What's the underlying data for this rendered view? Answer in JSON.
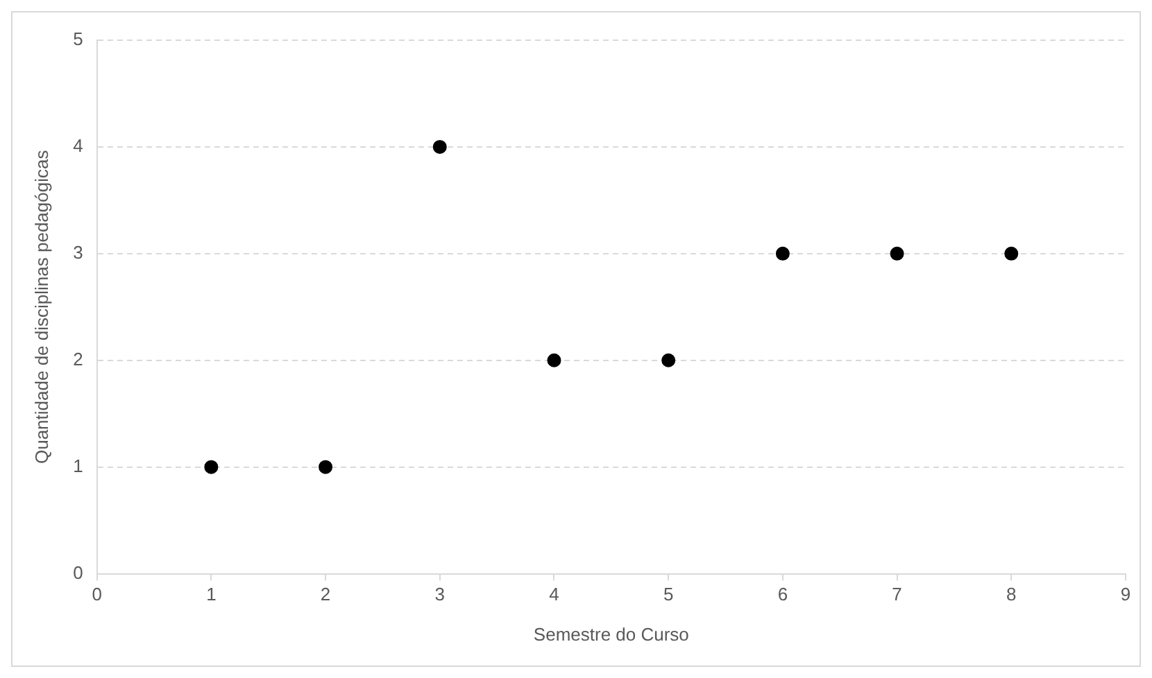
{
  "chart_data": {
    "type": "scatter",
    "xlabel": "Semestre do Curso",
    "ylabel": "Quantidade de disciplinas pedagógicas",
    "x": [
      1,
      2,
      3,
      4,
      5,
      6,
      7,
      8
    ],
    "series": [
      {
        "color": "#000000",
        "values": [
          1,
          1,
          4,
          2,
          2,
          3,
          3,
          3
        ]
      }
    ],
    "xlim": [
      0,
      9
    ],
    "xticks": [
      0,
      1,
      2,
      3,
      4,
      5,
      6,
      7,
      8,
      9
    ],
    "ylim": [
      0,
      5
    ],
    "yticks": [
      0,
      1,
      2,
      3,
      4,
      5
    ],
    "grid": "y",
    "legend": false,
    "marker": "circle"
  }
}
